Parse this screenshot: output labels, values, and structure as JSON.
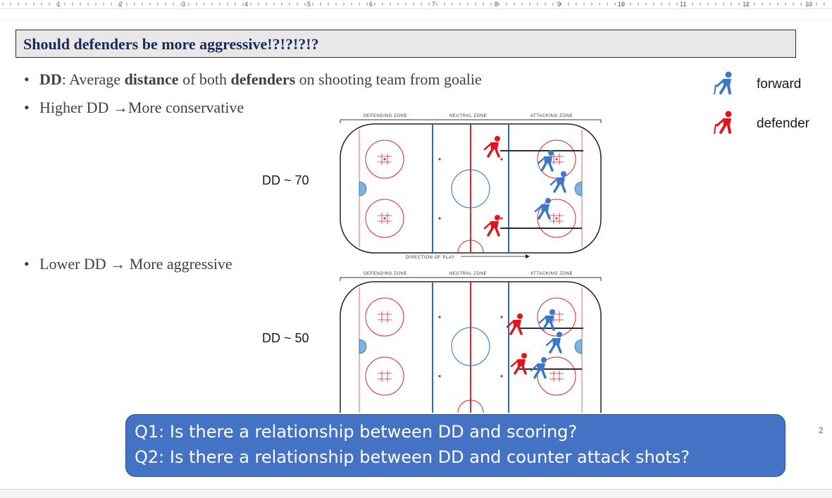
{
  "ruler": {
    "numbers": [
      "1",
      "2",
      "3",
      "4",
      "5",
      "6",
      "7",
      "8",
      "9",
      "10",
      "11",
      "12",
      "13"
    ]
  },
  "title": "Should defenders be more aggressive!?!?!?!?",
  "bullets": {
    "b1": {
      "part1": "DD",
      "part2": ": Average ",
      "part3": "distance",
      "part4": " of both ",
      "part5": "defenders",
      "part6": " on shooting team from goalie"
    },
    "b2": {
      "text": "Higher DD →More conservative"
    },
    "b3": {
      "text": "Lower DD → More aggressive"
    }
  },
  "rinks": {
    "top": {
      "dd_label": "DD ~ 70",
      "zones": [
        "DEFENDING ZONE",
        "NEUTRAL ZONE",
        "ATTACKING ZONE"
      ],
      "direction_label": "DIRECTION OF PLAY"
    },
    "bottom": {
      "dd_label": "DD ~ 50",
      "zones": [
        "DEFENDING ZONE",
        "NEUTRAL ZONE",
        "ATTACKING ZONE"
      ]
    }
  },
  "legend": {
    "forward": {
      "label": "forward",
      "icon": "hockey-player-icon",
      "color": "#3a78c9"
    },
    "defender": {
      "label": "defender",
      "icon": "hockey-player-icon",
      "color": "#e0161b"
    }
  },
  "questions": {
    "q1": "Q1: Is there a relationship between DD and scoring?",
    "q2": "Q2: Is there a relationship between DD and counter attack shots?"
  },
  "page_number": "2",
  "colors": {
    "question_box": "#4472c4",
    "title_text": "#1f2a5c",
    "rink_red": "#d9252b",
    "rink_blue": "#2a6ebb"
  }
}
